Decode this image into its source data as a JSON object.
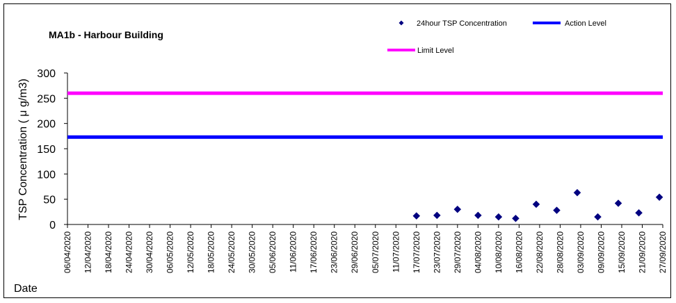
{
  "chart_data": {
    "type": "scatter",
    "title": "MA1b - Harbour Building",
    "ylabel": "TSP Concentration ( μ g/m3)",
    "xlabel": "Date",
    "ylim": [
      0,
      300
    ],
    "yticks": [
      0,
      50,
      100,
      150,
      200,
      250,
      300
    ],
    "x_ticks": [
      "06/04/2020",
      "12/04/2020",
      "18/04/2020",
      "24/04/2020",
      "30/04/2020",
      "06/05/2020",
      "12/05/2020",
      "18/05/2020",
      "24/05/2020",
      "30/05/2020",
      "05/06/2020",
      "11/06/2020",
      "17/06/2020",
      "23/06/2020",
      "29/06/2020",
      "05/07/2020",
      "11/07/2020",
      "17/07/2020",
      "23/07/2020",
      "29/07/2020",
      "04/08/2020",
      "10/08/2020",
      "16/08/2020",
      "22/08/2020",
      "28/08/2020",
      "03/09/2020",
      "09/09/2020",
      "15/09/2020",
      "21/09/2020",
      "27/09/2020"
    ],
    "series": [
      {
        "name": "24hour TSP Concentration",
        "marker": "diamond",
        "color": "#000080",
        "points": [
          {
            "x": "2020-07-17",
            "y": 17
          },
          {
            "x": "2020-07-23",
            "y": 18
          },
          {
            "x": "2020-07-29",
            "y": 30
          },
          {
            "x": "2020-08-04",
            "y": 18
          },
          {
            "x": "2020-08-10",
            "y": 15
          },
          {
            "x": "2020-08-15",
            "y": 12
          },
          {
            "x": "2020-08-21",
            "y": 40
          },
          {
            "x": "2020-08-27",
            "y": 28
          },
          {
            "x": "2020-09-02",
            "y": 63
          },
          {
            "x": "2020-09-08",
            "y": 15
          },
          {
            "x": "2020-09-14",
            "y": 42
          },
          {
            "x": "2020-09-20",
            "y": 23
          },
          {
            "x": "2020-09-26",
            "y": 54
          }
        ]
      },
      {
        "name": "Action Level",
        "type": "hline",
        "color": "#0000ff",
        "value": 173
      },
      {
        "name": "Limit Level",
        "type": "hline",
        "color": "#ff00ff",
        "value": 260
      }
    ],
    "legend_position": "top-right",
    "grid": false
  }
}
